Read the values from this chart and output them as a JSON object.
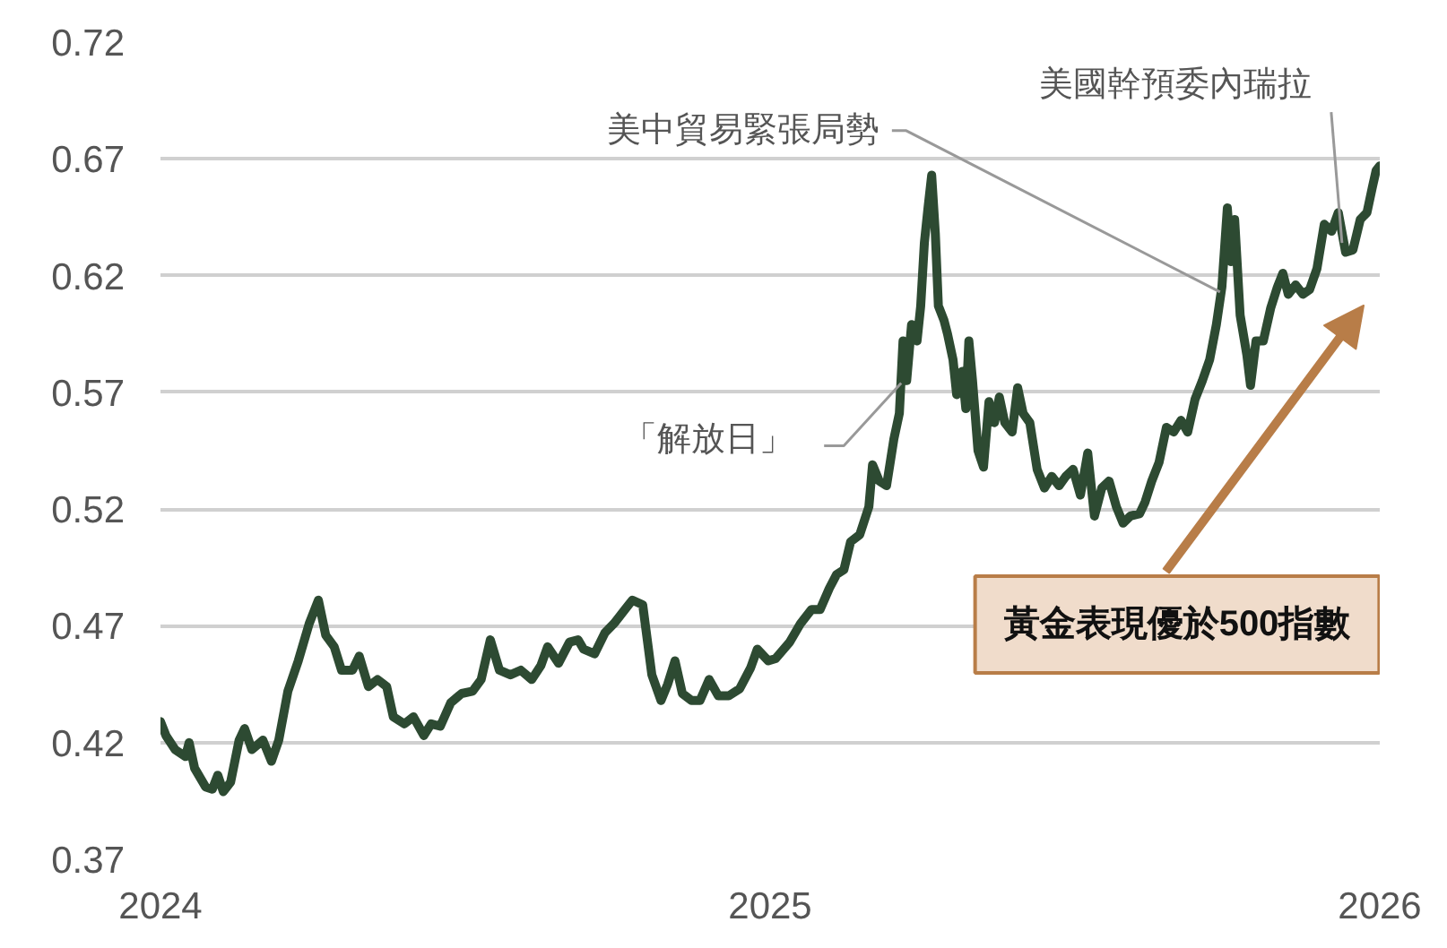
{
  "chart_data": {
    "type": "line",
    "xlim": [
      2024,
      2026
    ],
    "xticks": [
      2024,
      2025,
      2026
    ],
    "ylim": [
      0.37,
      0.72
    ],
    "yticks": [
      0.37,
      0.42,
      0.47,
      0.52,
      0.57,
      0.62,
      0.67,
      0.72
    ],
    "grid": "y",
    "x": [
      2024.0,
      2024.009,
      2024.024,
      2024.041,
      2024.047,
      2024.056,
      2024.074,
      2024.085,
      2024.094,
      2024.103,
      2024.115,
      2024.129,
      2024.138,
      2024.15,
      2024.168,
      2024.182,
      2024.194,
      2024.209,
      2024.226,
      2024.244,
      2024.259,
      2024.271,
      2024.285,
      2024.297,
      2024.315,
      2024.326,
      2024.341,
      2024.356,
      2024.371,
      2024.382,
      2024.4,
      2024.415,
      2024.432,
      2024.444,
      2024.459,
      2024.476,
      2024.494,
      2024.512,
      2024.526,
      2024.541,
      2024.556,
      2024.574,
      2024.591,
      2024.609,
      2024.624,
      2024.635,
      2024.653,
      2024.671,
      2024.685,
      2024.694,
      2024.712,
      2024.729,
      2024.744,
      2024.762,
      2024.774,
      2024.791,
      2024.806,
      2024.821,
      2024.832,
      2024.844,
      2024.856,
      2024.871,
      2024.885,
      2024.9,
      2024.915,
      2024.932,
      2024.95,
      2024.968,
      2024.979,
      2024.997,
      2025.009,
      2025.032,
      2025.05,
      2025.068,
      2025.082,
      2025.097,
      2025.109,
      2025.121,
      2025.132,
      2025.147,
      2025.162,
      2025.168,
      2025.179,
      2025.191,
      2025.203,
      2025.212,
      2025.218,
      2025.224,
      2025.232,
      2025.241,
      2025.247,
      2025.253,
      2025.259,
      2025.265,
      2025.271,
      2025.276,
      2025.285,
      2025.291,
      2025.3,
      2025.306,
      2025.315,
      2025.321,
      2025.326,
      2025.332,
      2025.341,
      2025.35,
      2025.359,
      2025.368,
      2025.376,
      2025.385,
      2025.397,
      2025.406,
      2025.415,
      2025.426,
      2025.438,
      2025.45,
      2025.462,
      2025.474,
      2025.485,
      2025.497,
      2025.509,
      2025.521,
      2025.532,
      2025.544,
      2025.556,
      2025.568,
      2025.579,
      2025.591,
      2025.606,
      2025.615,
      2025.626,
      2025.638,
      2025.65,
      2025.662,
      2025.674,
      2025.685,
      2025.697,
      2025.709,
      2025.721,
      2025.732,
      2025.741,
      2025.75,
      2025.756,
      2025.762,
      2025.771,
      2025.782,
      2025.788,
      2025.797,
      2025.809,
      2025.821,
      2025.832,
      2025.841,
      2025.85,
      2025.862,
      2025.874,
      2025.885,
      2025.897,
      2025.909,
      2025.921,
      2025.932,
      2025.944,
      2025.956,
      2025.968,
      2025.979,
      2025.988,
      2025.994,
      2026.0
    ],
    "series": [
      {
        "color": "#2d4a32",
        "values": [
          0.429,
          0.423,
          0.417,
          0.414,
          0.42,
          0.409,
          0.401,
          0.4,
          0.406,
          0.399,
          0.403,
          0.421,
          0.426,
          0.417,
          0.421,
          0.412,
          0.421,
          0.442,
          0.455,
          0.471,
          0.481,
          0.466,
          0.461,
          0.451,
          0.451,
          0.457,
          0.444,
          0.447,
          0.444,
          0.431,
          0.428,
          0.431,
          0.423,
          0.428,
          0.427,
          0.437,
          0.441,
          0.442,
          0.447,
          0.464,
          0.451,
          0.449,
          0.451,
          0.447,
          0.453,
          0.461,
          0.454,
          0.463,
          0.464,
          0.46,
          0.458,
          0.467,
          0.471,
          0.477,
          0.481,
          0.479,
          0.449,
          0.438,
          0.445,
          0.455,
          0.441,
          0.438,
          0.438,
          0.447,
          0.44,
          0.44,
          0.443,
          0.452,
          0.46,
          0.455,
          0.456,
          0.463,
          0.471,
          0.477,
          0.477,
          0.486,
          0.492,
          0.494,
          0.506,
          0.509,
          0.521,
          0.539,
          0.532,
          0.53,
          0.55,
          0.561,
          0.592,
          0.575,
          0.599,
          0.592,
          0.607,
          0.634,
          0.649,
          0.663,
          0.638,
          0.607,
          0.601,
          0.595,
          0.584,
          0.569,
          0.579,
          0.563,
          0.592,
          0.575,
          0.545,
          0.538,
          0.566,
          0.557,
          0.568,
          0.557,
          0.553,
          0.572,
          0.561,
          0.557,
          0.537,
          0.529,
          0.534,
          0.53,
          0.534,
          0.537,
          0.526,
          0.544,
          0.517,
          0.529,
          0.532,
          0.521,
          0.514,
          0.517,
          0.518,
          0.523,
          0.532,
          0.54,
          0.555,
          0.553,
          0.558,
          0.553,
          0.567,
          0.575,
          0.584,
          0.599,
          0.615,
          0.649,
          0.626,
          0.644,
          0.603,
          0.586,
          0.573,
          0.592,
          0.592,
          0.606,
          0.615,
          0.621,
          0.612,
          0.616,
          0.612,
          0.614,
          0.623,
          0.642,
          0.639,
          0.647,
          0.63,
          0.631,
          0.644,
          0.647,
          0.658,
          0.665,
          0.667
        ]
      }
    ],
    "annotations": [
      {
        "text": "美中貿易緊張局勢",
        "x": 2025.738,
        "y": 0.613
      },
      {
        "text": "美國幹預委內瑞拉",
        "x": 2025.938,
        "y": 0.634
      },
      {
        "text": "「解放日」",
        "x": 2025.215,
        "y": 0.574
      },
      "黃金表現優於500指數"
    ]
  }
}
